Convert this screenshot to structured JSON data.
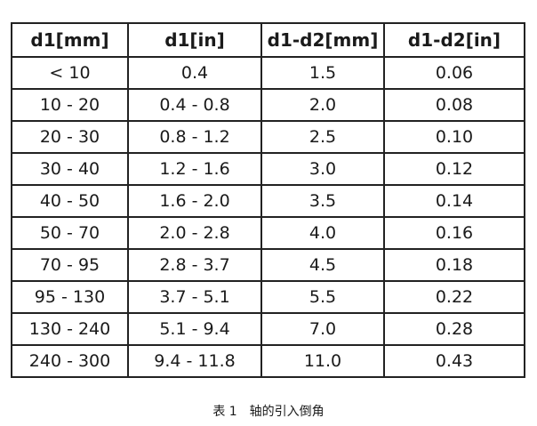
{
  "table": {
    "header": [
      "d1[mm]",
      "d1[in]",
      "d1-d2[mm]",
      "d1-d2[in]"
    ],
    "rows": [
      [
        "< 10",
        "0.4",
        "1.5",
        "0.06"
      ],
      [
        "10 - 20",
        "0.4 - 0.8",
        "2.0",
        "0.08"
      ],
      [
        "20 - 30",
        "0.8 - 1.2",
        "2.5",
        "0.10"
      ],
      [
        "30 - 40",
        "1.2 - 1.6",
        "3.0",
        "0.12"
      ],
      [
        "40 - 50",
        "1.6 - 2.0",
        "3.5",
        "0.14"
      ],
      [
        "50 - 70",
        "2.0 - 2.8",
        "4.0",
        "0.16"
      ],
      [
        "70 - 95",
        "2.8 - 3.7",
        "4.5",
        "0.18"
      ],
      [
        "95 - 130",
        "3.7 - 5.1",
        "5.5",
        "0.22"
      ],
      [
        "130 - 240",
        "5.1 - 9.4",
        "7.0",
        "0.28"
      ],
      [
        "240 - 300",
        "9.4 - 11.8",
        "11.0",
        "0.43"
      ]
    ],
    "caption": "表 1　轴的引入倒角"
  }
}
